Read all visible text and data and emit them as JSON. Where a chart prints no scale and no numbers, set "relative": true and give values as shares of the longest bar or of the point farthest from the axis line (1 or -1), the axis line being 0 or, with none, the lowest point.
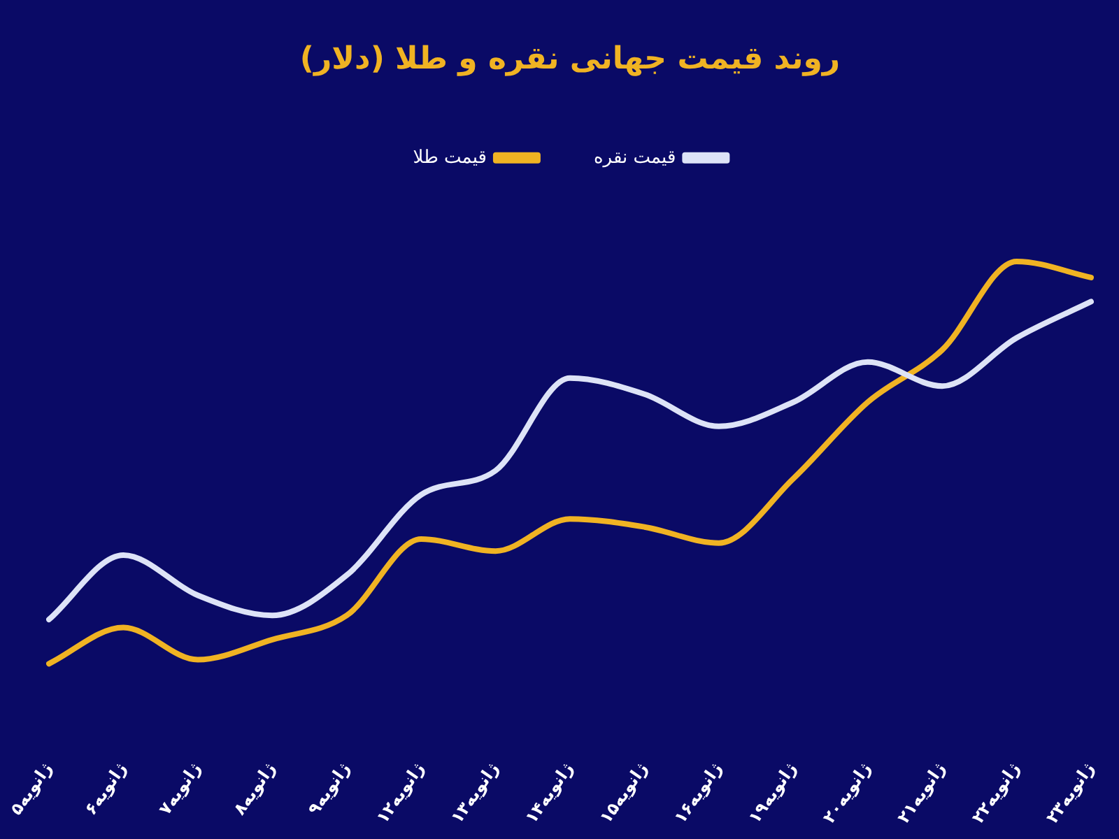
{
  "chart_data": {
    "type": "line",
    "title": "روند قیمت جهانی نقره و طلا (دلار)",
    "relative": true,
    "legend": "top",
    "marker": "none",
    "line_style": "solid",
    "categories": [
      "۵ژانویه",
      "۶ژانویه",
      "۷ژانویه",
      "۸ژانویه",
      "۹ژانویه",
      "۱۲ژانویه",
      "۱۳ژانویه",
      "۱۴ژانویه",
      "۱۵ژانویه",
      "۱۶ژانویه",
      "۱۹ژانویه",
      "۲۰ژانویه",
      "۲۱ژانویه",
      "۲۲ژانویه",
      "۲۳ژانویه"
    ],
    "series": [
      {
        "name": "قیمت نقره",
        "color": "#dde3f7",
        "values": [
          0.11,
          0.27,
          0.17,
          0.12,
          0.22,
          0.42,
          0.48,
          0.71,
          0.67,
          0.59,
          0.65,
          0.75,
          0.69,
          0.81,
          0.9
        ]
      },
      {
        "name": "قیمت طلا",
        "color": "#f0b323",
        "values": [
          0,
          0.09,
          0.01,
          0.06,
          0.12,
          0.31,
          0.28,
          0.36,
          0.34,
          0.3,
          0.46,
          0.65,
          0.78,
          1,
          0.96
        ]
      }
    ]
  }
}
